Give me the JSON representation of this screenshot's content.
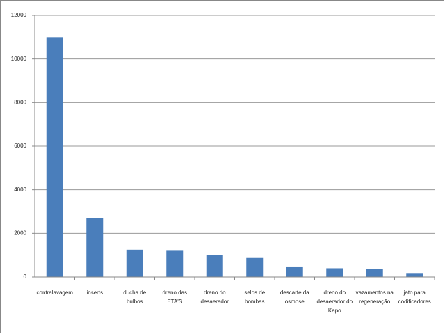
{
  "chart_data": {
    "type": "bar",
    "categories": [
      "contralavagem",
      "inserts",
      "ducha de bulbos",
      "dreno das ETA'S",
      "dreno do desaerador",
      "selos de bombas",
      "descarte da osmose",
      "dreno do desaerador do Kapo",
      "vazamentos na regeneração",
      "jato para codificadores"
    ],
    "values": [
      11000,
      2700,
      1250,
      1200,
      1000,
      870,
      480,
      400,
      360,
      150
    ],
    "color": "#4a7ebb",
    "ylim": [
      0,
      12000
    ],
    "yticks": [
      0,
      2000,
      4000,
      6000,
      8000,
      10000,
      12000
    ],
    "grid": true
  }
}
